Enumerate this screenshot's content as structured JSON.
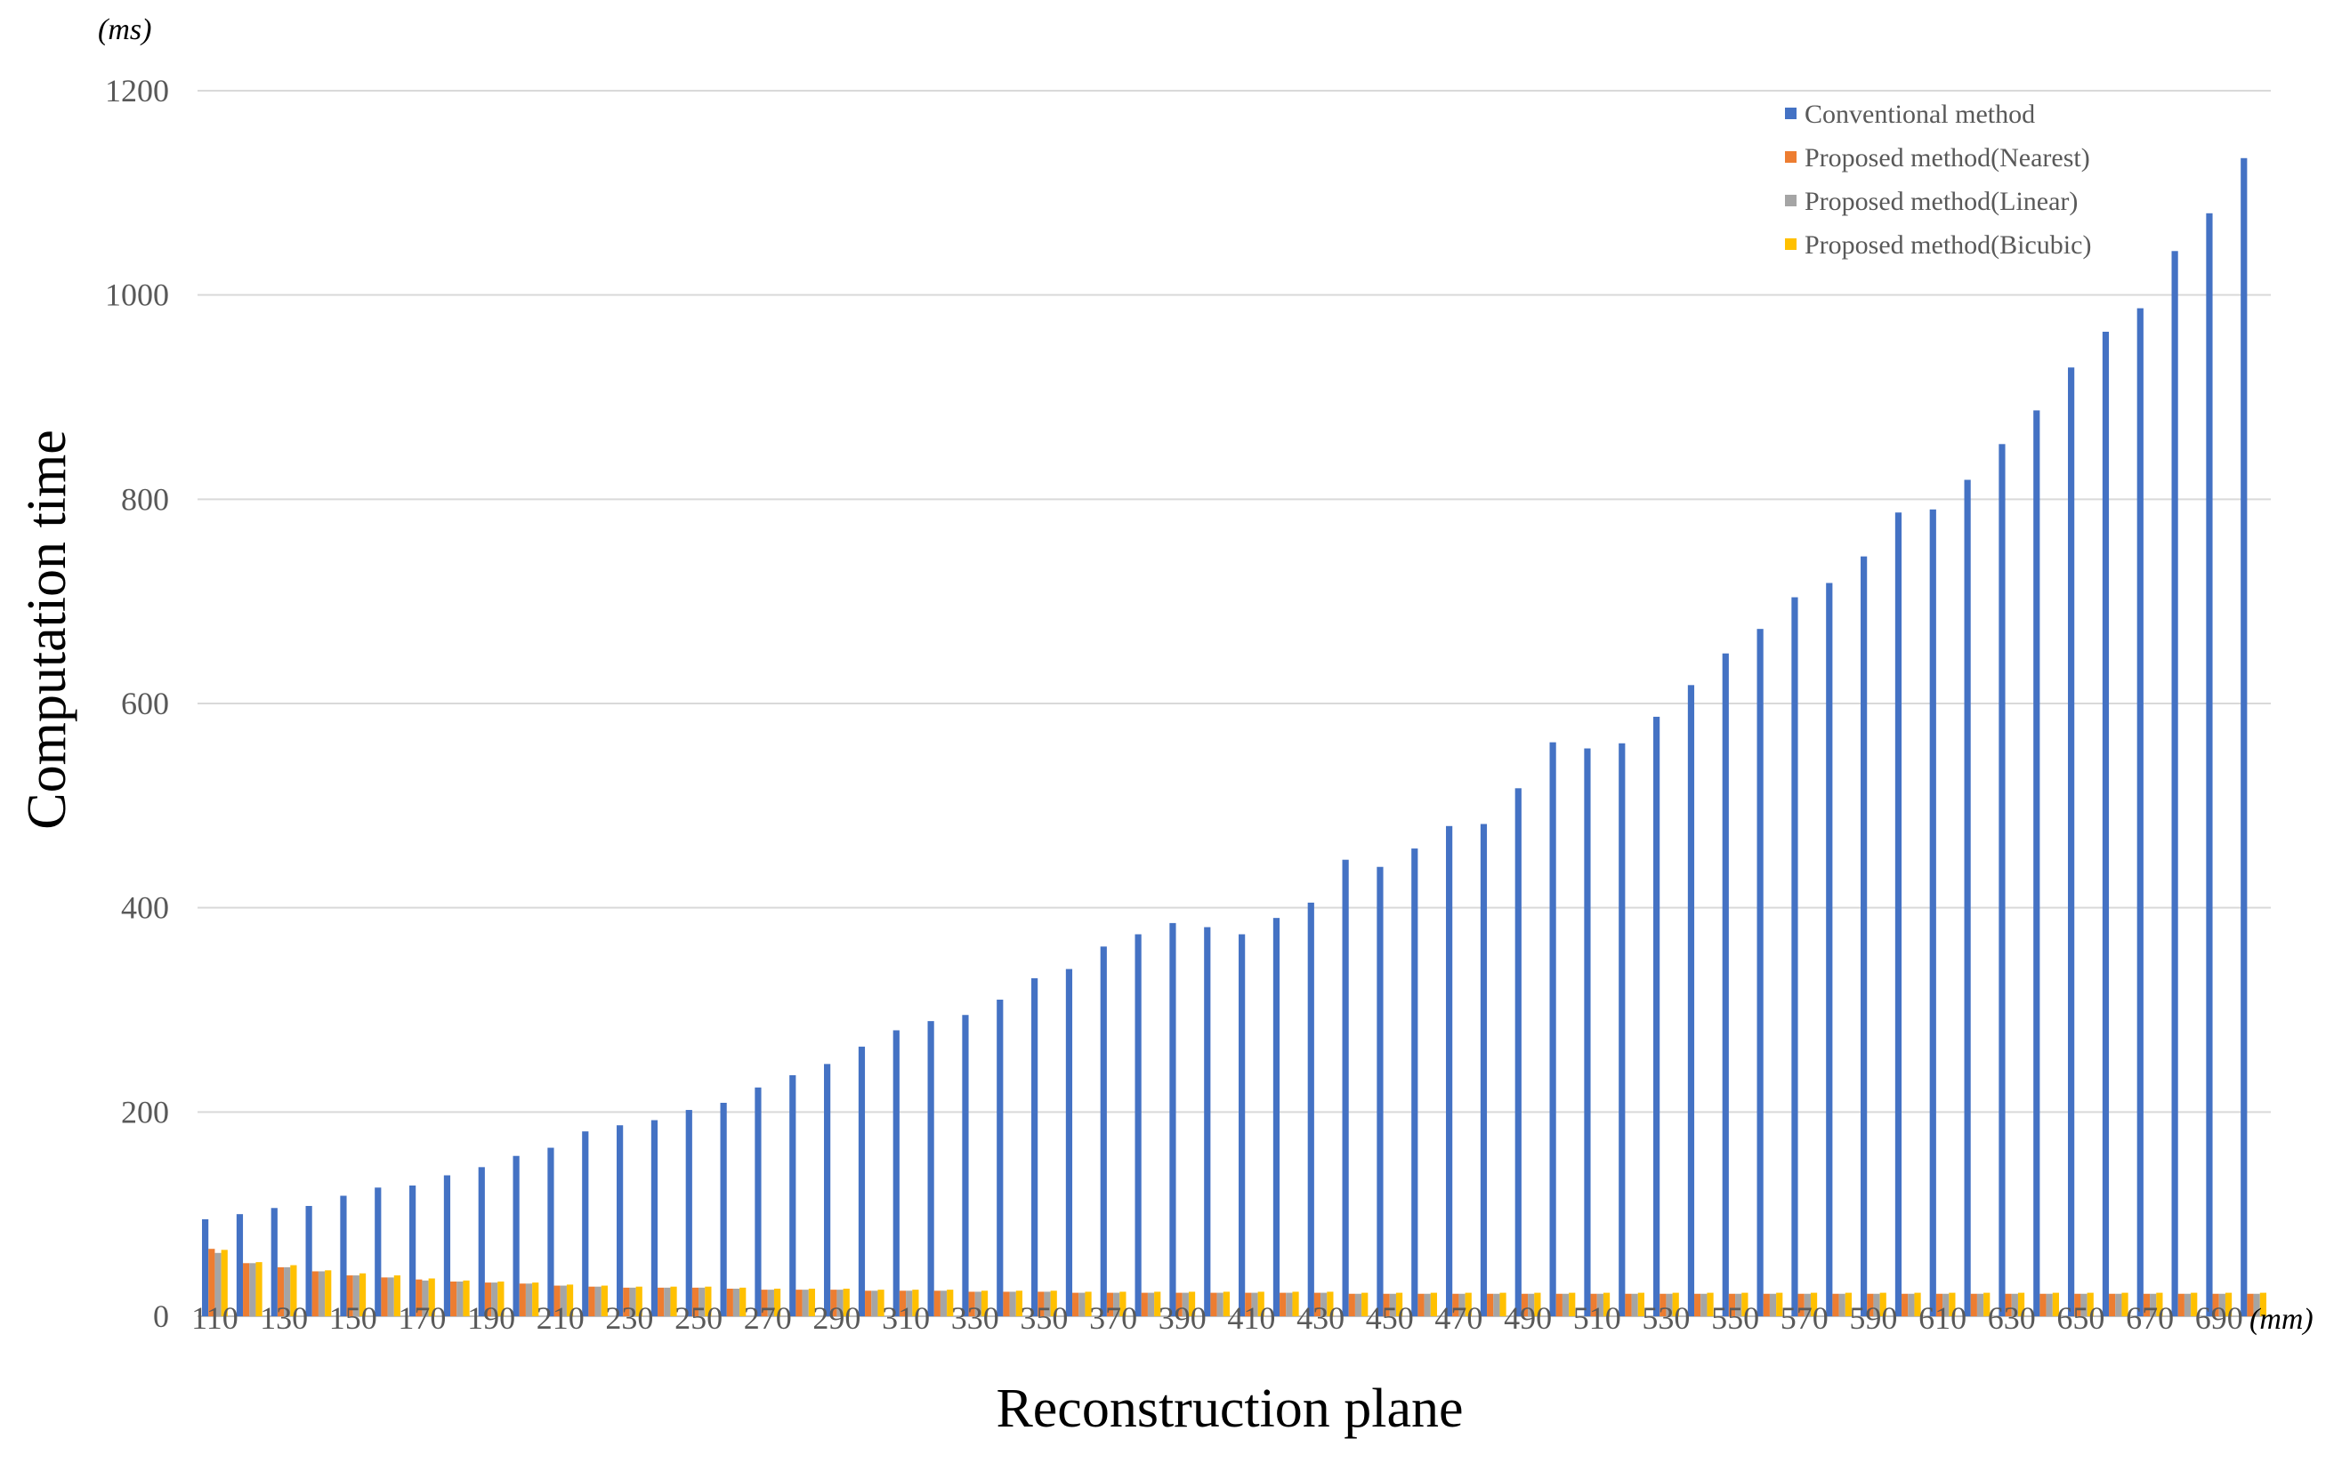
{
  "chart_data": {
    "type": "bar",
    "xlabel": "Reconstruction plane",
    "ylabel": "Computation time",
    "x_unit": "(mm)",
    "y_unit": "(ms)",
    "ylim": [
      0,
      1200
    ],
    "yticks": [
      0,
      200,
      400,
      600,
      800,
      1000,
      1200
    ],
    "grid": true,
    "legend_position": "top-right",
    "categories": [
      110,
      120,
      130,
      140,
      150,
      160,
      170,
      180,
      190,
      200,
      210,
      220,
      230,
      240,
      250,
      260,
      270,
      280,
      290,
      300,
      310,
      320,
      330,
      340,
      350,
      360,
      370,
      380,
      390,
      400,
      410,
      420,
      430,
      440,
      450,
      460,
      470,
      480,
      490,
      500,
      510,
      520,
      530,
      540,
      550,
      560,
      570,
      580,
      590,
      600,
      610,
      620,
      630,
      640,
      650,
      660,
      670,
      680,
      690,
      700
    ],
    "tick_labels": [
      "110",
      "130",
      "150",
      "170",
      "190",
      "210",
      "230",
      "250",
      "270",
      "290",
      "310",
      "330",
      "350",
      "370",
      "390",
      "410",
      "430",
      "450",
      "470",
      "490",
      "510",
      "530",
      "550",
      "570",
      "590",
      "610",
      "630",
      "650",
      "670",
      "690"
    ],
    "series": [
      {
        "name": "Conventional method",
        "color": "#4472C4",
        "values": [
          95,
          100,
          106,
          108,
          118,
          126,
          128,
          138,
          146,
          157,
          165,
          181,
          187,
          192,
          202,
          209,
          224,
          236,
          247,
          264,
          280,
          289,
          295,
          310,
          331,
          340,
          362,
          374,
          385,
          381,
          374,
          390,
          405,
          447,
          440,
          458,
          480,
          482,
          517,
          562,
          556,
          561,
          587,
          618,
          649,
          673,
          704,
          718,
          744,
          787,
          790,
          819,
          854,
          887,
          929,
          964,
          987,
          1043,
          1080,
          1134
        ]
      },
      {
        "name": "Proposed method(Nearest)",
        "color": "#ED7D31",
        "values": [
          66,
          52,
          48,
          44,
          40,
          38,
          36,
          34,
          33,
          32,
          30,
          29,
          28,
          28,
          28,
          27,
          26,
          26,
          26,
          25,
          25,
          25,
          24,
          24,
          24,
          23,
          23,
          23,
          23,
          23,
          23,
          23,
          23,
          22,
          22,
          22,
          22,
          22,
          22,
          22,
          22,
          22,
          22,
          22,
          22,
          22,
          22,
          22,
          22,
          22,
          22,
          22,
          22,
          22,
          22,
          22,
          22,
          22,
          22,
          22
        ]
      },
      {
        "name": "Proposed method(Linear)",
        "color": "#A5A5A5",
        "values": [
          62,
          52,
          48,
          44,
          40,
          38,
          35,
          34,
          33,
          32,
          30,
          29,
          28,
          28,
          28,
          27,
          26,
          26,
          26,
          25,
          25,
          25,
          24,
          24,
          24,
          23,
          23,
          23,
          23,
          23,
          23,
          23,
          23,
          22,
          22,
          22,
          22,
          22,
          22,
          22,
          22,
          22,
          22,
          22,
          22,
          22,
          22,
          22,
          22,
          22,
          22,
          22,
          22,
          22,
          22,
          22,
          22,
          22,
          22,
          22
        ]
      },
      {
        "name": "Proposed method(Bicubic)",
        "color": "#FFC000",
        "values": [
          65,
          53,
          50,
          45,
          42,
          40,
          37,
          35,
          34,
          33,
          31,
          30,
          29,
          29,
          29,
          28,
          27,
          27,
          27,
          26,
          26,
          26,
          25,
          25,
          25,
          24,
          24,
          24,
          24,
          24,
          24,
          24,
          24,
          23,
          23,
          23,
          23,
          23,
          23,
          23,
          23,
          23,
          23,
          23,
          23,
          23,
          23,
          23,
          23,
          23,
          23,
          23,
          23,
          23,
          23,
          23,
          23,
          23,
          23,
          23
        ]
      }
    ]
  }
}
